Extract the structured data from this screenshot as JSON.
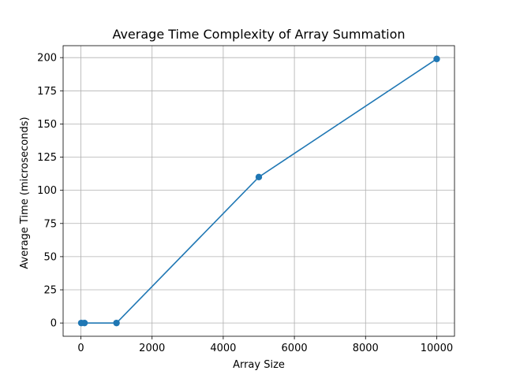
{
  "chart_data": {
    "type": "line",
    "title": "Average Time Complexity of Array Summation",
    "xlabel": "Array Size",
    "ylabel": "Average Time (microseconds)",
    "xlim": [
      -500,
      10500
    ],
    "ylim": [
      -10,
      209
    ],
    "xticks": [
      0,
      2000,
      4000,
      6000,
      8000,
      10000
    ],
    "yticks": [
      0,
      25,
      50,
      75,
      100,
      125,
      150,
      175,
      200
    ],
    "grid": true,
    "series": [
      {
        "color": "#1f77b4",
        "marker": "circle",
        "x": [
          10,
          100,
          1000,
          5000,
          10000
        ],
        "y": [
          0,
          0,
          0,
          110,
          199
        ]
      }
    ]
  }
}
